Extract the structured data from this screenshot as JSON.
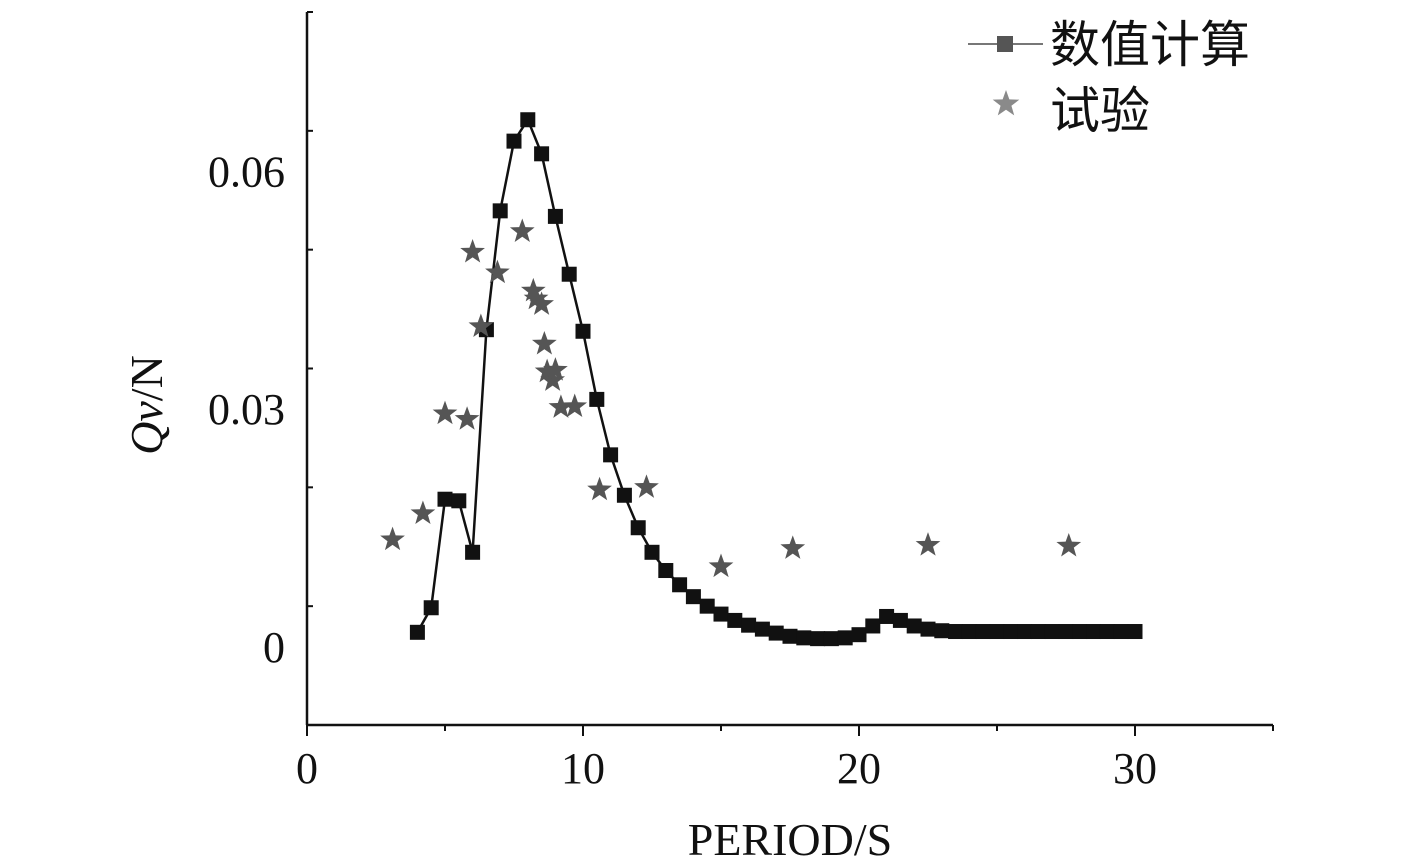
{
  "chart_data": {
    "type": "scatter",
    "title": "",
    "xlabel": "PERIOD/S",
    "ylabel": {
      "italic": "Qv",
      "rest": "/N"
    },
    "xlim": [
      0,
      35
    ],
    "ylim": [
      -0.01,
      0.08
    ],
    "xticks": [
      0,
      10,
      20,
      30
    ],
    "xtick_labels": [
      "0",
      "10",
      "20",
      "30"
    ],
    "yticks": [
      0,
      0.03,
      0.06
    ],
    "ytick_labels": [
      "0",
      "0.03",
      "0.06"
    ],
    "grid": false,
    "legend_position": "top-right",
    "series": [
      {
        "name": "数值计算",
        "marker": "square",
        "line": true,
        "color": "#111111",
        "legend_color": "#555555",
        "x": [
          4.0,
          4.5,
          5.0,
          5.5,
          6.0,
          6.5,
          7.0,
          7.5,
          8.0,
          8.5,
          9.0,
          9.5,
          10.0,
          10.5,
          11.0,
          11.5,
          12.0,
          12.5,
          13.0,
          13.5,
          14.0,
          14.5,
          15.0,
          15.5,
          16.0,
          16.5,
          17.0,
          17.5,
          18.0,
          18.5,
          19.0,
          19.5,
          20.0,
          20.5,
          21.0,
          21.5,
          22.0,
          22.5,
          23.0,
          23.5,
          24.0,
          24.5,
          25.0,
          25.5,
          26.0,
          26.5,
          27.0,
          27.5,
          28.0,
          28.5,
          29.0,
          29.5,
          30.0
        ],
        "y": [
          0.0017,
          0.0048,
          0.0185,
          0.0183,
          0.0118,
          0.0399,
          0.0549,
          0.0637,
          0.0664,
          0.0621,
          0.0542,
          0.0469,
          0.0397,
          0.0311,
          0.0241,
          0.019,
          0.0149,
          0.0118,
          0.0095,
          0.0077,
          0.0062,
          0.005,
          0.004,
          0.0032,
          0.0026,
          0.0021,
          0.0016,
          0.0012,
          0.001,
          0.0009,
          0.0009,
          0.001,
          0.0014,
          0.0025,
          0.0037,
          0.0032,
          0.0025,
          0.0021,
          0.0019,
          0.0018,
          0.0018,
          0.0018,
          0.0018,
          0.0018,
          0.0018,
          0.0018,
          0.0018,
          0.0018,
          0.0018,
          0.0018,
          0.0018,
          0.0018,
          0.0018
        ]
      },
      {
        "name": "试验",
        "marker": "star",
        "line": false,
        "color": "#555555",
        "legend_color": "#8a8a8a",
        "x": [
          3.1,
          4.2,
          5.0,
          5.8,
          6.0,
          6.3,
          6.9,
          7.8,
          8.2,
          8.3,
          8.5,
          8.6,
          8.7,
          8.9,
          9.0,
          9.2,
          9.7,
          10.6,
          12.3,
          15.0,
          17.6,
          22.5,
          27.6
        ],
        "y": [
          0.0134,
          0.0167,
          0.0293,
          0.0286,
          0.0497,
          0.0403,
          0.0471,
          0.0523,
          0.0448,
          0.0438,
          0.0431,
          0.0381,
          0.0346,
          0.0335,
          0.0348,
          0.0301,
          0.0302,
          0.0197,
          0.02,
          0.01,
          0.0123,
          0.0127,
          0.0126
        ]
      }
    ]
  }
}
